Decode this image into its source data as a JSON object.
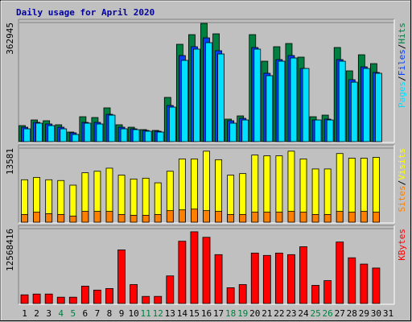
{
  "chart_data": [
    {
      "type": "bar",
      "title": "Daily usage for April 2020",
      "ylim": [
        0,
        362945
      ],
      "yticks": [
        362945
      ],
      "separator": "/",
      "series": [
        {
          "name": "Hits",
          "color": "#008040",
          "values": [
            49000,
            66200,
            63800,
            51500,
            29400,
            76000,
            73600,
            103000,
            51500,
            44100,
            36800,
            34300,
            134900,
            296700,
            326100,
            360400,
            328600,
            68700,
            78500,
            326100,
            245200,
            289300,
            299100,
            257500,
            76000,
            80900,
            286900,
            215800,
            264800,
            237800,
            null
          ]
        },
        {
          "name": "Files",
          "color": "#0040ff",
          "values": [
            44100,
            58800,
            53900,
            44100,
            27000,
            58800,
            58800,
            83400,
            44100,
            39200,
            34300,
            31900,
            110300,
            262400,
            289300,
            316300,
            277100,
            63800,
            71100,
            286900,
            208400,
            250100,
            262400,
            223100,
            66200,
            68700,
            250100,
            188800,
            228000,
            210900,
            null
          ]
        },
        {
          "name": "Pages",
          "color": "#00e0ff",
          "values": [
            39200,
            56400,
            49000,
            39200,
            22100,
            56400,
            53900,
            80900,
            39200,
            36800,
            31900,
            29400,
            105400,
            247700,
            282000,
            301600,
            267300,
            56400,
            66200,
            282000,
            201100,
            245200,
            255000,
            223100,
            66200,
            66200,
            245200,
            181400,
            223100,
            208400,
            null
          ]
        }
      ]
    },
    {
      "type": "bar",
      "ylim": [
        0,
        13581
      ],
      "yticks": [
        13581
      ],
      "separator": "/",
      "series": [
        {
          "name": "Visits",
          "color": "#ffff00",
          "values": [
            7780,
            8210,
            7780,
            7640,
            6790,
            9060,
            9340,
            9900,
            8630,
            7920,
            8070,
            7220,
            9340,
            11600,
            11600,
            13020,
            11460,
            8630,
            8910,
            12310,
            12170,
            12170,
            13020,
            11600,
            9760,
            9760,
            12590,
            11740,
            11740,
            11890,
            null
          ]
        },
        {
          "name": "Sites",
          "color": "#ff8000",
          "values": [
            1415,
            1840,
            1560,
            1415,
            1130,
            1980,
            1980,
            1980,
            1415,
            1270,
            1270,
            1415,
            2120,
            2260,
            2400,
            2120,
            1980,
            1415,
            1415,
            1840,
            1840,
            1840,
            1980,
            1840,
            1415,
            1415,
            1980,
            1840,
            1980,
            1840,
            null
          ]
        }
      ]
    },
    {
      "type": "bar",
      "ylim": [
        0,
        12568416
      ],
      "yticks": [
        12568416
      ],
      "categories": [
        "1",
        "2",
        "3",
        "4",
        "5",
        "6",
        "7",
        "8",
        "9",
        "10",
        "11",
        "12",
        "13",
        "14",
        "15",
        "16",
        "17",
        "18",
        "19",
        "20",
        "21",
        "22",
        "23",
        "24",
        "25",
        "26",
        "27",
        "28",
        "29",
        "30",
        "31"
      ],
      "label_colors": [
        "#000",
        "#000",
        "#000",
        "#008040",
        "#008040",
        "#000",
        "#000",
        "#000",
        "#000",
        "#000",
        "#008040",
        "#008040",
        "#000",
        "#000",
        "#000",
        "#000",
        "#000",
        "#008040",
        "#008040",
        "#000",
        "#000",
        "#000",
        "#000",
        "#000",
        "#008040",
        "#008040",
        "#000",
        "#000",
        "#000",
        "#000",
        "#000"
      ],
      "series": [
        {
          "name": "KBytes",
          "color": "#ff0000",
          "values": [
            1455000,
            1588000,
            1588000,
            1058000,
            1058000,
            2911000,
            2249000,
            2514000,
            8996000,
            3175000,
            1191000,
            1191000,
            4631000,
            10452000,
            12039000,
            11113000,
            8203000,
            2646000,
            3175000,
            8467000,
            8070000,
            8467000,
            8203000,
            9526000,
            3043000,
            3837000,
            10319000,
            7673000,
            6615000,
            5954000,
            null
          ]
        }
      ]
    }
  ]
}
